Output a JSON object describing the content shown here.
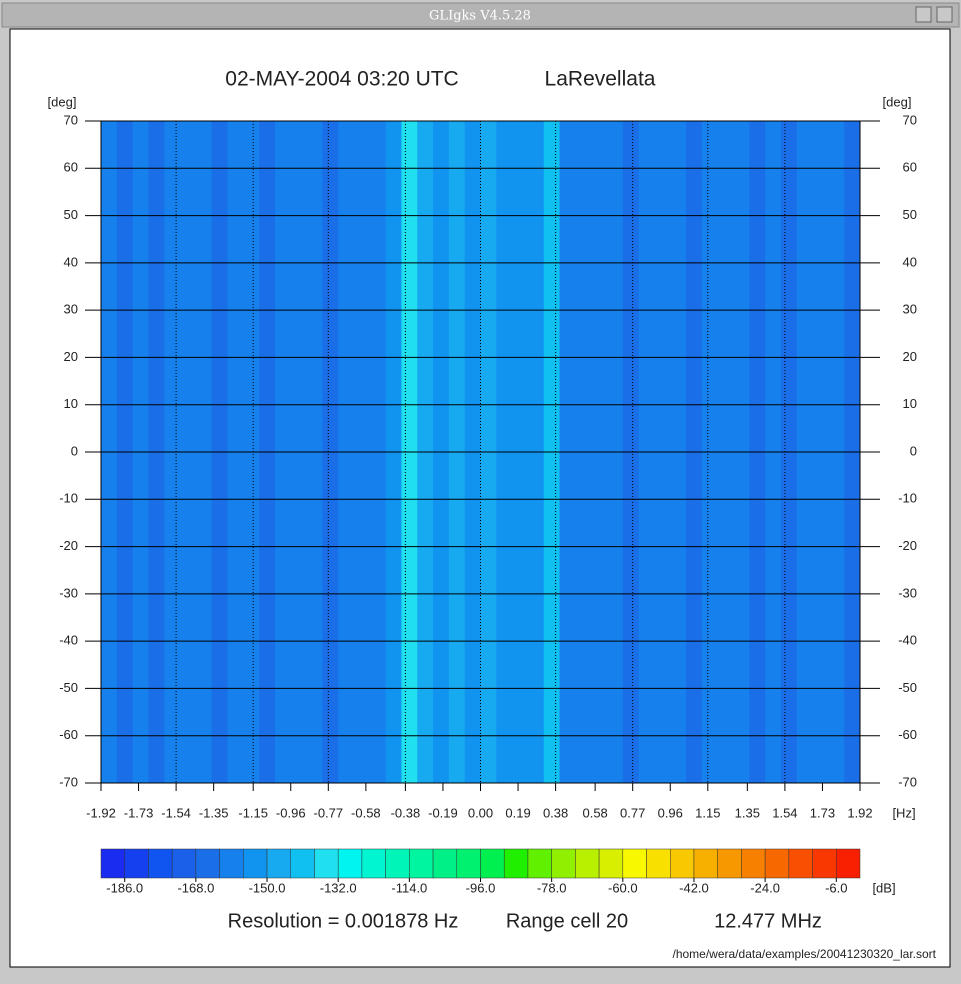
{
  "window": {
    "title": "GLIgks V4.5.28"
  },
  "chart_data": {
    "type": "heatmap",
    "title": "02-MAY-2004 03:20 UTC",
    "subtitle": "LaRevellata",
    "ylabel": "[deg]",
    "xlabel": "[Hz]",
    "colorbar_label": "[dB]",
    "footer": [
      "Resolution = 0.001878 Hz",
      "Range cell  20",
      "12.477 MHz"
    ],
    "footnote": "/home/wera/data/examples/20041230320_lar.sort",
    "x": [
      -1.88,
      -1.8,
      -1.72,
      -1.64,
      -1.56,
      -1.48,
      -1.4,
      -1.32,
      -1.24,
      -1.16,
      -1.08,
      -1.0,
      -0.92,
      -0.84,
      -0.76,
      -0.68,
      -0.6,
      -0.52,
      -0.44,
      -0.36,
      -0.28,
      -0.2,
      -0.12,
      -0.04,
      0.04,
      0.12,
      0.2,
      0.28,
      0.36,
      0.44,
      0.52,
      0.6,
      0.68,
      0.76,
      0.84,
      0.92,
      1.0,
      1.08,
      1.16,
      1.24,
      1.32,
      1.4,
      1.48,
      1.56,
      1.64,
      1.72,
      1.8,
      1.88
    ],
    "values": [
      -160,
      -163,
      -158,
      -164,
      -160,
      -162,
      -159,
      -163,
      -158,
      -161,
      -164,
      -159,
      -162,
      -157,
      -163,
      -158,
      -160,
      -157,
      -155,
      -138,
      -150,
      -151,
      -149,
      -152,
      -150,
      -153,
      -151,
      -155,
      -140,
      -157,
      -159,
      -161,
      -158,
      -163,
      -160,
      -162,
      -159,
      -164,
      -160,
      -162,
      -158,
      -163,
      -160,
      -165,
      -159,
      -162,
      -160,
      -163
    ],
    "xlim": [
      -1.92,
      1.92
    ],
    "ylim": [
      -70,
      70
    ],
    "xticks": [
      -1.92,
      -1.73,
      -1.54,
      -1.35,
      -1.15,
      -0.96,
      -0.77,
      -0.58,
      -0.38,
      -0.19,
      {
        "value": 0,
        "label": "0.00"
      },
      0.19,
      0.38,
      0.58,
      0.77,
      0.96,
      1.15,
      1.35,
      1.54,
      1.73,
      1.92
    ],
    "yticks": [
      70,
      60,
      50,
      40,
      30,
      20,
      10,
      0,
      -10,
      -20,
      -30,
      -40,
      -50,
      -60,
      -70
    ],
    "clim": [
      -192,
      0
    ],
    "cticks": [
      {
        "value": -186,
        "label": "-186.0"
      },
      {
        "value": -168,
        "label": "-168.0"
      },
      {
        "value": -150,
        "label": "-150.0"
      },
      {
        "value": -132,
        "label": "-132.0"
      },
      {
        "value": -114,
        "label": "-114.0"
      },
      {
        "value": -96,
        "label": "-96.0"
      },
      {
        "value": -78,
        "label": "-78.0"
      },
      {
        "value": -60,
        "label": "-60.0"
      },
      {
        "value": -42,
        "label": "-42.0"
      },
      {
        "value": -24,
        "label": "-24.0"
      },
      {
        "value": -6,
        "label": "-6.0"
      }
    ],
    "colormap": [
      "#1a2cf0",
      "#1540f0",
      "#1055f0",
      "#1a60e8",
      "#1a6ee8",
      "#1680ec",
      "#1094f0",
      "#18aaf0",
      "#10c0f0",
      "#20e0f0",
      "#00f5f0",
      "#00f5d0",
      "#00f5b8",
      "#00f5a0",
      "#00f088",
      "#00f070",
      "#00f050",
      "#20f000",
      "#60f000",
      "#90f000",
      "#b8f000",
      "#d8f000",
      "#f8f800",
      "#f8e000",
      "#f8c800",
      "#f8b000",
      "#f89800",
      "#f88000",
      "#f86800",
      "#f85000",
      "#f83800",
      "#f82000"
    ],
    "grid": true
  }
}
